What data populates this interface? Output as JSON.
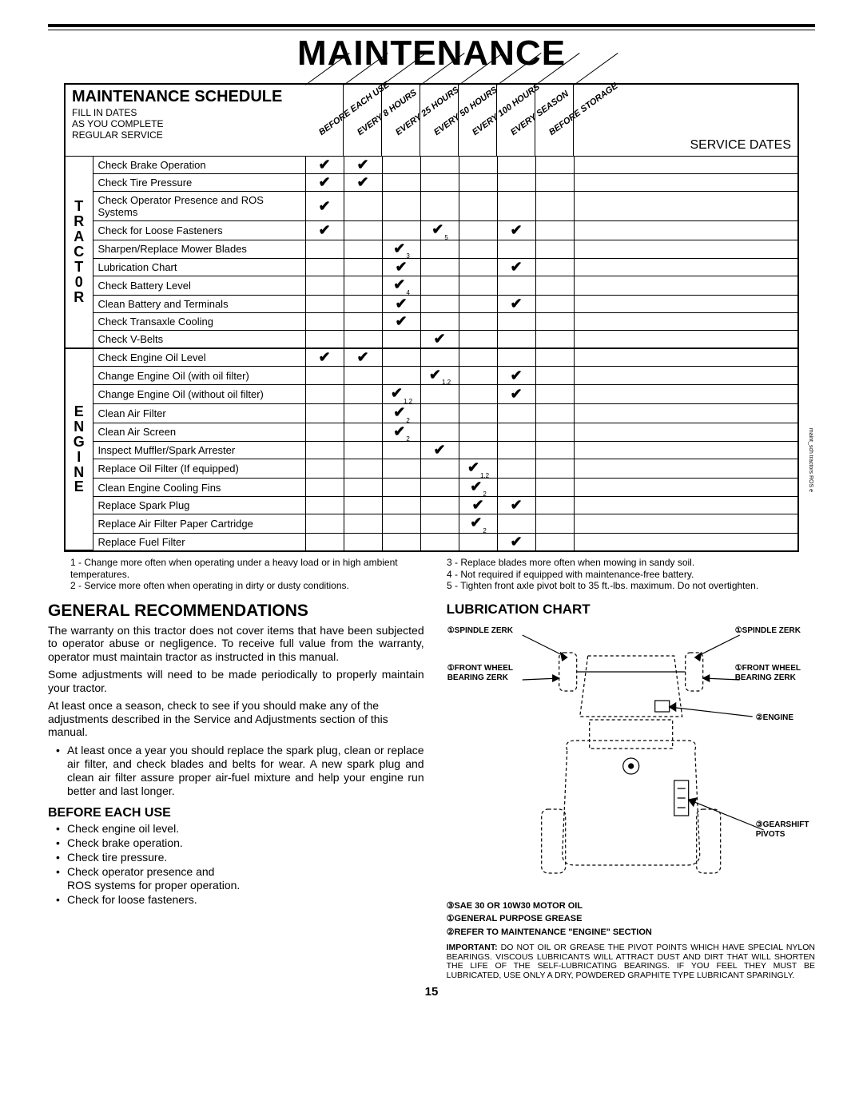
{
  "page_title": "MAINTENANCE",
  "schedule": {
    "title": "MAINTENANCE SCHEDULE",
    "sub": "FILL IN DATES\nAS YOU COMPLETE\nREGULAR SERVICE",
    "cols": [
      "BEFORE EACH USE",
      "EVERY 8 HOURS",
      "EVERY 25 HOURS",
      "EVERY 50 HOURS",
      "EVERY 100 HOURS",
      "EVERY SEASON",
      "BEFORE STORAGE"
    ],
    "service_dates_label": "SERVICE DATES",
    "groups": [
      {
        "label": "T\nR\nA\nC\nT\n0\nR",
        "rows": [
          {
            "t": "Check Brake Operation",
            "c": [
              1,
              1,
              0,
              0,
              0,
              0,
              0
            ]
          },
          {
            "t": "Check Tire Pressure",
            "c": [
              1,
              1,
              0,
              0,
              0,
              0,
              0
            ]
          },
          {
            "t": "Check Operator Presence and ROS Systems",
            "c": [
              1,
              0,
              0,
              0,
              0,
              0,
              0
            ]
          },
          {
            "t": "Check for Loose Fasteners",
            "c": [
              1,
              0,
              0,
              "5",
              0,
              1,
              0
            ]
          },
          {
            "t": "Sharpen/Replace Mower Blades",
            "c": [
              0,
              0,
              "3",
              0,
              0,
              0,
              0
            ]
          },
          {
            "t": "Lubrication Chart",
            "c": [
              0,
              0,
              1,
              0,
              0,
              1,
              0
            ]
          },
          {
            "t": "Check Battery Level",
            "c": [
              0,
              0,
              "4",
              0,
              0,
              0,
              0
            ]
          },
          {
            "t": "Clean Battery and Terminals",
            "c": [
              0,
              0,
              1,
              0,
              0,
              1,
              0
            ]
          },
          {
            "t": "Check Transaxle Cooling",
            "c": [
              0,
              0,
              1,
              0,
              0,
              0,
              0
            ]
          },
          {
            "t": "Check V-Belts",
            "c": [
              0,
              0,
              0,
              1,
              0,
              0,
              0
            ]
          }
        ]
      },
      {
        "label": "E\nN\nG\nI\nN\nE",
        "rows": [
          {
            "t": "Check Engine Oil Level",
            "c": [
              1,
              1,
              0,
              0,
              0,
              0,
              0
            ]
          },
          {
            "t": "Change Engine Oil (with oil filter)",
            "c": [
              0,
              0,
              0,
              "1,2",
              0,
              1,
              0
            ]
          },
          {
            "t": "Change Engine Oil (without oil filter)",
            "c": [
              0,
              0,
              "1,2",
              0,
              0,
              1,
              0
            ]
          },
          {
            "t": "Clean Air Filter",
            "c": [
              0,
              0,
              "2",
              0,
              0,
              0,
              0
            ]
          },
          {
            "t": "Clean Air Screen",
            "c": [
              0,
              0,
              "2",
              0,
              0,
              0,
              0
            ]
          },
          {
            "t": "Inspect Muffler/Spark Arrester",
            "c": [
              0,
              0,
              0,
              1,
              0,
              0,
              0
            ]
          },
          {
            "t": "Replace Oil Filter (If equipped)",
            "c": [
              0,
              0,
              0,
              0,
              "1,2",
              0,
              0
            ]
          },
          {
            "t": "Clean Engine Cooling Fins",
            "c": [
              0,
              0,
              0,
              0,
              "2",
              0,
              0
            ]
          },
          {
            "t": "Replace Spark Plug",
            "c": [
              0,
              0,
              0,
              0,
              1,
              1,
              0
            ]
          },
          {
            "t": "Replace Air Filter Paper Cartridge",
            "c": [
              0,
              0,
              0,
              0,
              "2",
              0,
              0
            ]
          },
          {
            "t": "Replace Fuel Filter",
            "c": [
              0,
              0,
              0,
              0,
              0,
              1,
              0
            ]
          }
        ]
      }
    ]
  },
  "footnotes_left": [
    "1 - Change more often when operating under a heavy load or in high ambient temperatures.",
    "2 - Service more often when operating in dirty or dusty conditions."
  ],
  "footnotes_right": [
    "3 - Replace blades more often when mowing in sandy soil.",
    "4 - Not required if equipped with maintenance-free battery.",
    "5 - Tighten front axle pivot bolt to 35 ft.-lbs. maximum. Do not overtighten."
  ],
  "general": {
    "title": "GENERAL RECOMMENDATIONS",
    "p1": "The warranty on this tractor does not cover items that have been subjected to operator abuse or negligence. To receive full value from the warranty, operator must maintain tractor as instructed in this manual.",
    "p2": "Some adjustments will need to be made periodically to properly maintain your tractor.",
    "p3": "At least once a season, check to see if you should make any of the adjustments described in the Service and Adjustments section of this manual.",
    "bullet1": "At least once a year you should replace the spark plug, clean or replace air filter, and check blades and belts for wear.  A new spark plug and clean air filter assure proper air-fuel mixture and help your engine run better and last longer."
  },
  "before": {
    "title": "BEFORE EACH USE",
    "items": [
      "Check engine oil level.",
      "Check brake operation.",
      "Check tire pressure.",
      "Check operator presence and",
      "ROS systems for proper operation.",
      "Check for loose fasteners."
    ]
  },
  "lub": {
    "title": "LUBRICATION CHART",
    "labels": {
      "spindle_l": "①SPINDLE ZERK",
      "spindle_r": "①SPINDLE ZERK",
      "front_l": "①FRONT WHEEL\nBEARING ZERK",
      "front_r": "①FRONT WHEEL\nBEARING ZERK",
      "engine": "②ENGINE",
      "gearshift": "③GEARSHIFT\nPIVOTS"
    },
    "keys": [
      "③SAE 30 OR 10W30 MOTOR OIL",
      "①GENERAL PURPOSE GREASE",
      "②REFER TO MAINTENANCE \"ENGINE\" SECTION"
    ],
    "important": "IMPORTANT: DO NOT OIL OR GREASE THE PIVOT POINTS WHICH HAVE SPECIAL NYLON BEARINGS. VISCOUS LUBRICANTS WILL ATTRACT DUST AND DIRT THAT WILL SHORTEN THE LIFE OF THE SELF-LUBRICATING BEARINGS. IF YOU FEEL THEY MUST BE LUBRICATED, USE ONLY A DRY, POWDERED GRAPHITE TYPE LUBRICANT SPARINGLY."
  },
  "page_num": "15",
  "side_note": "maint_sch tractors ROS e"
}
